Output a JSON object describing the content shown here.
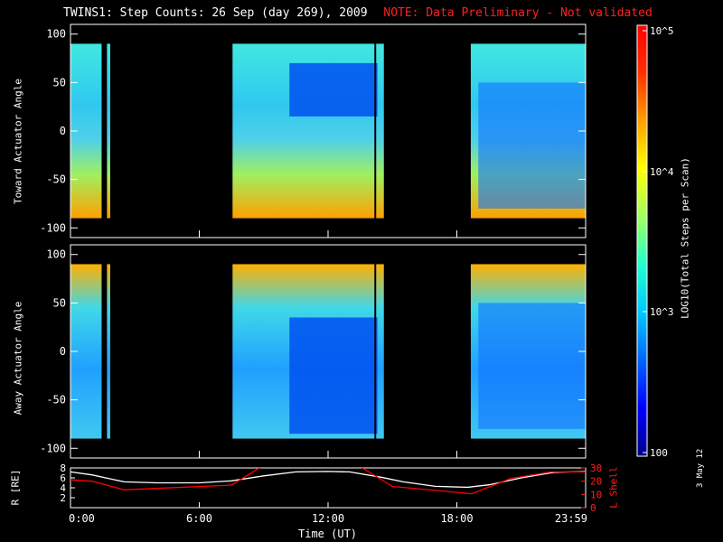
{
  "title": "TWINS1: Step Counts: 26 Sep (day 269), 2009",
  "note": "NOTE: Data Preliminary - Not validated",
  "datestamp": "3 May 12",
  "colorbar": {
    "label": "LOG10(Total Steps per Scan)",
    "ticks": [
      "10^5",
      "10^4",
      "10^3",
      "100"
    ],
    "colors": [
      "#00008c",
      "#0000ff",
      "#0064ff",
      "#00c8ff",
      "#20ffd0",
      "#a0ff60",
      "#ffff00",
      "#ffa000",
      "#ff3000",
      "#ff0000"
    ]
  },
  "chart_data": [
    {
      "type": "heatmap",
      "name": "toward",
      "ylabel": "Toward Actuator Angle",
      "ylim": [
        -110,
        110
      ],
      "yticks": [
        100,
        50,
        0,
        -50,
        -100
      ],
      "xlim": [
        0,
        24
      ],
      "data_intervals_hours": [
        [
          0,
          1.45
        ],
        [
          1.7,
          1.85
        ],
        [
          7.55,
          14.6
        ],
        [
          18.65,
          24
        ]
      ]
    },
    {
      "type": "heatmap",
      "name": "away",
      "ylabel": "Away Actuator Angle",
      "ylim": [
        -110,
        110
      ],
      "yticks": [
        100,
        50,
        0,
        -50,
        -100
      ],
      "xlim": [
        0,
        24
      ],
      "data_intervals_hours": [
        [
          0,
          1.45
        ],
        [
          1.7,
          1.85
        ],
        [
          7.55,
          14.6
        ],
        [
          18.65,
          24
        ]
      ]
    },
    {
      "type": "line",
      "name": "orbit",
      "ylabel_left": "R [RE]",
      "ylabel_right": "L Shell",
      "ylim_left": [
        0,
        8
      ],
      "yticks_left": [
        8,
        6,
        4,
        2
      ],
      "ylim_right": [
        0,
        30
      ],
      "yticks_right": [
        30,
        20,
        10,
        0
      ],
      "xlabel": "Time (UT)",
      "xticks": [
        "0:00",
        "6:00",
        "12:00",
        "18:00",
        "23:59"
      ],
      "xtick_hours": [
        0,
        6,
        12,
        18,
        24
      ],
      "series": [
        {
          "name": "R",
          "axis": "left",
          "color": "#ffffff",
          "x": [
            0,
            1,
            2.5,
            4,
            6,
            7.5,
            9,
            10.5,
            12,
            13,
            14.5,
            15.5,
            17,
            18.5,
            19.5,
            21,
            22.5,
            24
          ],
          "y": [
            7.2,
            6.6,
            5.2,
            5.0,
            5.0,
            5.4,
            6.4,
            7.2,
            7.3,
            7.2,
            6.1,
            5.2,
            4.3,
            4.1,
            4.6,
            6.0,
            7.1,
            7.3
          ]
        },
        {
          "name": "L Shell",
          "axis": "right",
          "color": "#ff0000",
          "x": [
            0,
            1,
            2.5,
            7.5,
            8.9,
            13.5,
            15,
            18.7,
            20.5,
            22.4,
            24
          ],
          "y": [
            21,
            20,
            13.5,
            17,
            31,
            31,
            16,
            10.5,
            22,
            27,
            27
          ]
        }
      ]
    }
  ]
}
